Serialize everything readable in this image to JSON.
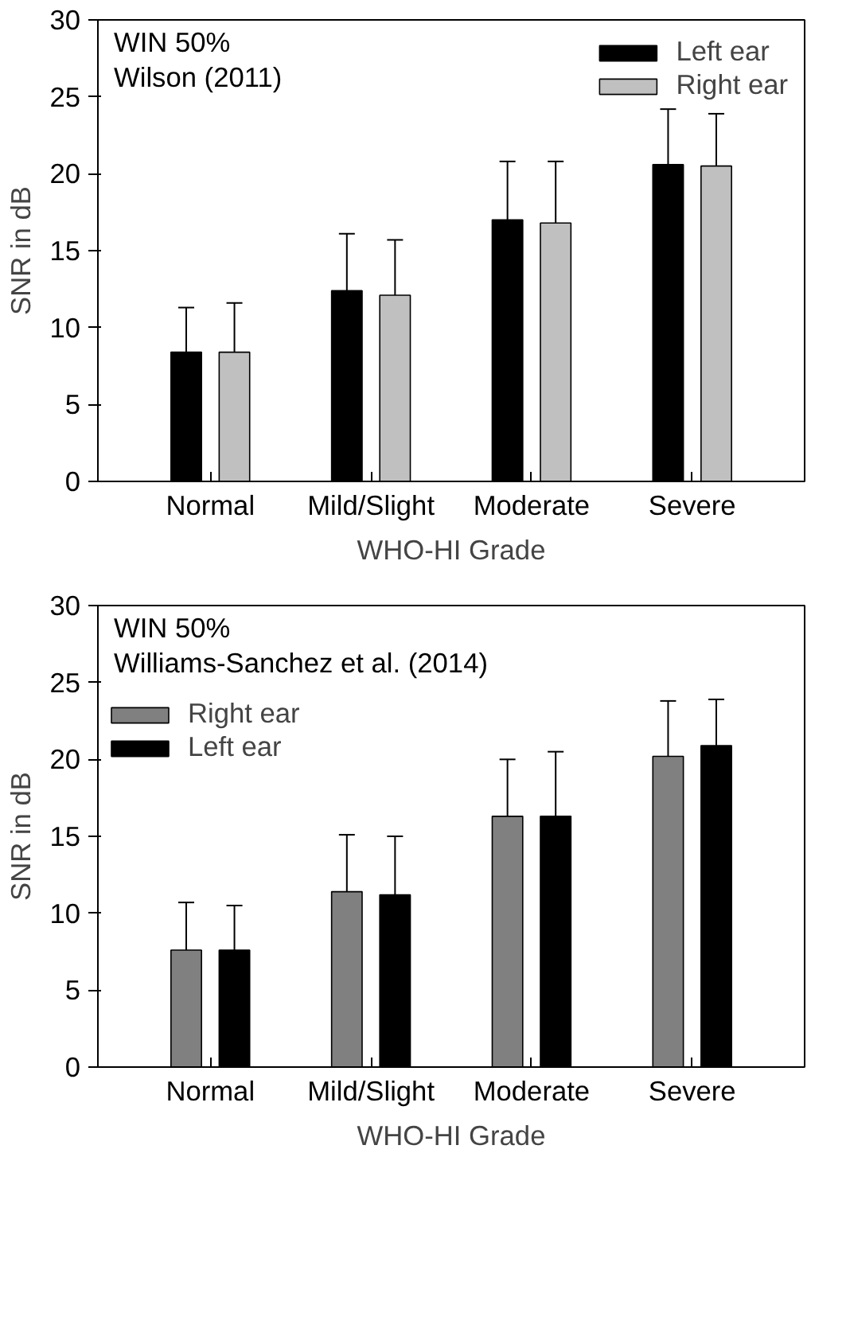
{
  "chart_data": [
    {
      "type": "bar",
      "categories": [
        "Normal",
        "Mild/Slight",
        "Moderate",
        "Severe"
      ],
      "xlabel": "WHO-HI Grade",
      "ylabel": "SNR in dB",
      "ylim": [
        0,
        30
      ],
      "yticks": [
        0,
        5,
        10,
        15,
        20,
        25,
        30
      ],
      "grid": false,
      "legend": "top right",
      "annotations": [
        "WIN 50%",
        "Wilson (2011)"
      ],
      "series": [
        {
          "name": "Left ear",
          "color": "#000000",
          "values": [
            8.4,
            12.4,
            17.0,
            20.6
          ],
          "errors": [
            [
              8.4,
              11.3
            ],
            [
              12.4,
              16.1
            ],
            [
              17.0,
              20.8
            ],
            [
              20.6,
              24.2
            ]
          ]
        },
        {
          "name": "Right ear",
          "color": "#c0c0c0",
          "values": [
            8.4,
            12.1,
            16.8,
            20.5
          ],
          "errors": [
            [
              8.4,
              11.6
            ],
            [
              12.1,
              15.7
            ],
            [
              16.8,
              20.8
            ],
            [
              20.5,
              23.9
            ]
          ]
        }
      ]
    },
    {
      "type": "bar",
      "categories": [
        "Normal",
        "Mild/Slight",
        "Moderate",
        "Severe"
      ],
      "xlabel": "WHO-HI Grade",
      "ylabel": "SNR in dB",
      "ylim": [
        0,
        30
      ],
      "yticks": [
        0,
        5,
        10,
        15,
        20,
        25,
        30
      ],
      "grid": false,
      "legend": "top left",
      "annotations": [
        "WIN 50%",
        "Williams-Sanchez et al. (2014)"
      ],
      "series": [
        {
          "name": "Right ear",
          "color": "#808080",
          "values": [
            7.6,
            11.4,
            16.3,
            20.2
          ],
          "errors": [
            [
              7.6,
              10.7
            ],
            [
              11.4,
              15.1
            ],
            [
              16.3,
              20.0
            ],
            [
              20.2,
              23.8
            ]
          ]
        },
        {
          "name": "Left ear",
          "color": "#000000",
          "values": [
            7.6,
            11.2,
            16.3,
            20.9
          ],
          "errors": [
            [
              7.6,
              10.5
            ],
            [
              11.2,
              15.0
            ],
            [
              16.3,
              20.5
            ],
            [
              20.9,
              23.9
            ]
          ]
        }
      ]
    }
  ]
}
